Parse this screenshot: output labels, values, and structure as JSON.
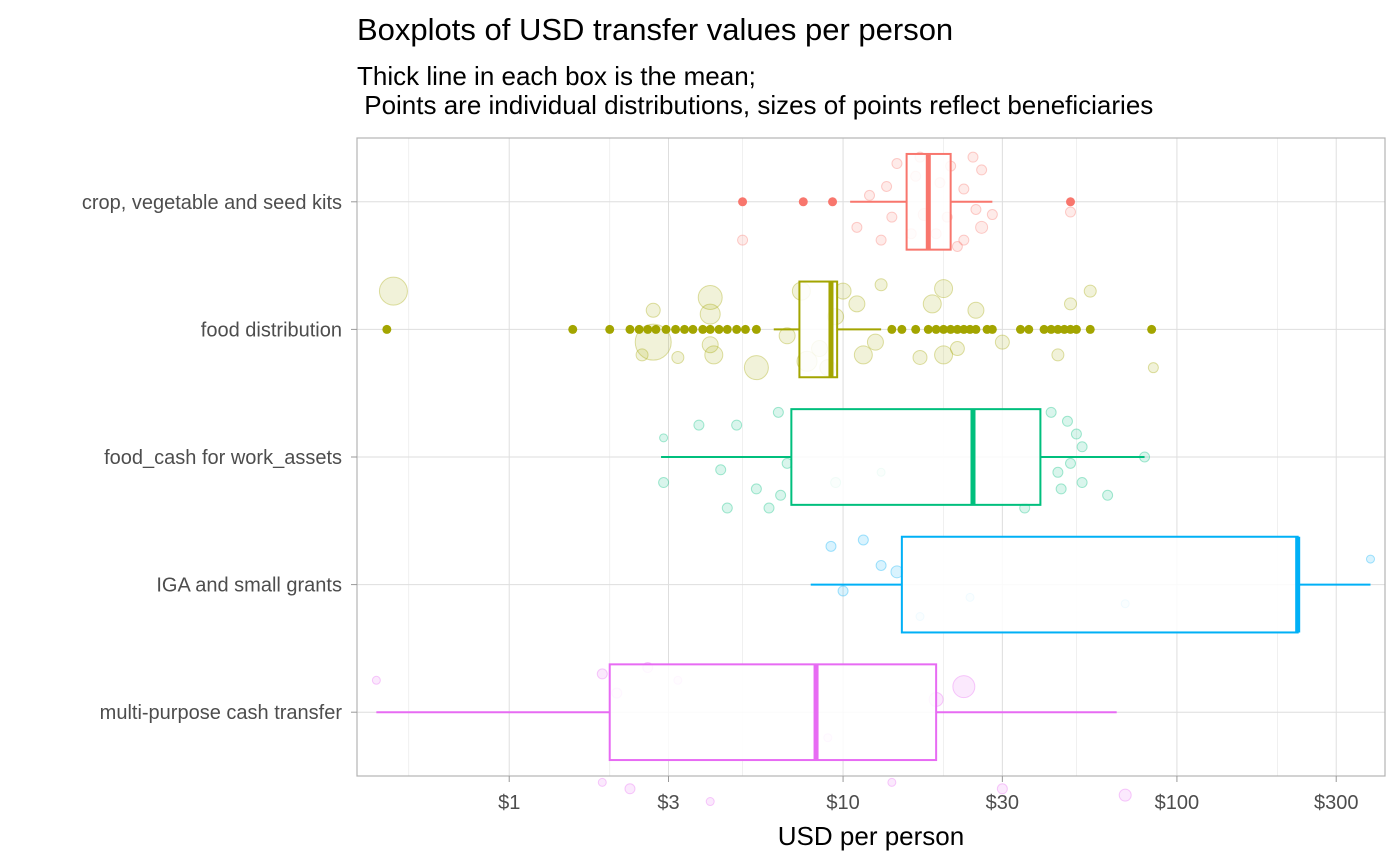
{
  "chart_data": {
    "type": "boxplot",
    "title": "Boxplots of USD transfer values per person",
    "subtitle_lines": [
      "Thick line in each box is the mean;",
      " Points are individual distributions, sizes of points reflect beneficiaries"
    ],
    "xlabel": "USD per person",
    "ylabel": "",
    "x_scale": "log10",
    "xlim": [
      0.35,
      420
    ],
    "x_ticks": [
      {
        "value": 1,
        "label": "$1"
      },
      {
        "value": 3,
        "label": "$3"
      },
      {
        "value": 10,
        "label": "$10"
      },
      {
        "value": 30,
        "label": "$30"
      },
      {
        "value": 100,
        "label": "$100"
      },
      {
        "value": 300,
        "label": "$300"
      }
    ],
    "x_minor_gridlines": [
      0.5,
      2,
      5,
      20,
      50,
      200
    ],
    "grid": true,
    "legend": "none",
    "categories": [
      {
        "name": "multi-purpose cash transfer",
        "color": "#E76BF3",
        "whisker_low": 0.4,
        "q1": 2.0,
        "mean": 8.3,
        "q3": 19.0,
        "whisker_high": 66,
        "outliers": [],
        "points": [
          [
            1.9,
            0.55,
            4
          ],
          [
            2.3,
            0.6,
            5
          ],
          [
            4,
            0.7,
            4
          ],
          [
            14,
            0.55,
            4
          ],
          [
            30,
            0.6,
            5
          ],
          [
            70,
            0.65,
            6
          ],
          [
            1.9,
            -0.3,
            5
          ],
          [
            2.1,
            -0.15,
            5
          ],
          [
            2.6,
            -0.35,
            5
          ],
          [
            3.2,
            -0.25,
            4
          ],
          [
            19,
            -0.1,
            7
          ],
          [
            23,
            -0.2,
            11
          ],
          [
            0.4,
            -0.25,
            4
          ],
          [
            9,
            0.2,
            4
          ]
        ]
      },
      {
        "name": "IGA and small grants",
        "color": "#00B0F6",
        "whisker_low": 8.0,
        "q1": 15.0,
        "mean": 230,
        "q3": 230,
        "whisker_high": 380,
        "outliers": [],
        "points": [
          [
            10,
            0.05,
            5
          ],
          [
            14.5,
            -0.1,
            6
          ],
          [
            13,
            -0.15,
            5
          ],
          [
            9.2,
            -0.3,
            5
          ],
          [
            11.5,
            -0.35,
            5
          ],
          [
            17,
            0.25,
            4
          ],
          [
            24,
            0.1,
            4
          ],
          [
            70,
            0.15,
            4
          ],
          [
            380,
            -0.2,
            4
          ]
        ]
      },
      {
        "name": "food_cash for work_assets",
        "color": "#00BF7D",
        "whisker_low": 2.85,
        "q1": 7.0,
        "mean": 24.5,
        "q3": 39,
        "whisker_high": 80,
        "outliers": [],
        "points": [
          [
            4.5,
            0.4,
            5
          ],
          [
            6,
            0.4,
            5
          ],
          [
            6.5,
            0.3,
            5
          ],
          [
            5.5,
            0.25,
            5
          ],
          [
            2.9,
            0.2,
            5
          ],
          [
            4.3,
            0.1,
            5
          ],
          [
            6.8,
            0.05,
            5
          ],
          [
            9.5,
            0.2,
            5
          ],
          [
            13,
            0.12,
            4
          ],
          [
            45,
            0.25,
            5
          ],
          [
            52,
            0.2,
            5
          ],
          [
            44,
            0.12,
            5
          ],
          [
            62,
            0.3,
            5
          ],
          [
            48,
            0.05,
            5
          ],
          [
            52,
            -0.08,
            5
          ],
          [
            50,
            -0.18,
            5
          ],
          [
            47,
            -0.28,
            5
          ],
          [
            42,
            -0.35,
            5
          ],
          [
            3.7,
            -0.25,
            5
          ],
          [
            4.8,
            -0.25,
            5
          ],
          [
            6.4,
            -0.35,
            5
          ],
          [
            2.9,
            -0.15,
            4
          ],
          [
            80,
            0.0,
            5
          ],
          [
            35,
            0.4,
            5
          ]
        ]
      },
      {
        "name": "food distribution",
        "color": "#A3A500",
        "whisker_low": 6.2,
        "q1": 7.4,
        "mean": 9.2,
        "q3": 9.6,
        "whisker_high": 13,
        "outliers": [
          0.43,
          1.55,
          2.0,
          2.3,
          2.45,
          2.6,
          2.75,
          2.95,
          3.15,
          3.35,
          3.55,
          3.8,
          4.0,
          4.25,
          4.5,
          4.8,
          5.1,
          5.5,
          14,
          15,
          16.5,
          18,
          19,
          20,
          21,
          22,
          23,
          24,
          25,
          27,
          28,
          34,
          36,
          40,
          42,
          44,
          46,
          48,
          50,
          55,
          84
        ],
        "points": [
          [
            2.7,
            0.1,
            18
          ],
          [
            0.45,
            -0.3,
            14
          ],
          [
            2.5,
            0.2,
            6
          ],
          [
            2.7,
            -0.15,
            7
          ],
          [
            3.2,
            0.22,
            6
          ],
          [
            4,
            -0.25,
            12
          ],
          [
            4,
            -0.12,
            10
          ],
          [
            4,
            0.12,
            8
          ],
          [
            4.1,
            0.2,
            9
          ],
          [
            5.5,
            0.3,
            12
          ],
          [
            7.8,
            0.25,
            10
          ],
          [
            8.5,
            0.15,
            8
          ],
          [
            9.5,
            -0.1,
            8
          ],
          [
            11.5,
            0.2,
            9
          ],
          [
            11,
            -0.2,
            8
          ],
          [
            12.5,
            0.1,
            8
          ],
          [
            17,
            0.22,
            7
          ],
          [
            18.5,
            -0.2,
            9
          ],
          [
            20,
            0.2,
            9
          ],
          [
            20,
            -0.32,
            9
          ],
          [
            22,
            0.15,
            7
          ],
          [
            25,
            -0.15,
            8
          ],
          [
            30,
            0.1,
            7
          ],
          [
            48,
            -0.2,
            6
          ],
          [
            44,
            0.2,
            6
          ],
          [
            55,
            -0.3,
            6
          ],
          [
            85,
            0.3,
            5
          ],
          [
            7.5,
            -0.3,
            9
          ],
          [
            9,
            0.3,
            8
          ],
          [
            6.8,
            0.05,
            8
          ],
          [
            10,
            -0.3,
            8
          ],
          [
            13,
            -0.35,
            6
          ]
        ]
      },
      {
        "name": "crop, vegetable and seed kits",
        "color": "#F8766D",
        "whisker_low": 10.5,
        "q1": 15.5,
        "mean": 18.0,
        "q3": 21.0,
        "whisker_high": 28,
        "outliers": [
          5.0,
          7.6,
          9.3,
          48
        ],
        "points": [
          [
            5,
            0.3,
            5
          ],
          [
            13,
            0.3,
            5
          ],
          [
            16,
            0.25,
            5
          ],
          [
            19,
            0.25,
            5
          ],
          [
            23,
            0.3,
            5
          ],
          [
            26,
            0.2,
            6
          ],
          [
            14,
            0.12,
            5
          ],
          [
            17.5,
            0.1,
            6
          ],
          [
            20.5,
            0.12,
            5
          ],
          [
            25,
            0.06,
            5
          ],
          [
            28,
            0.1,
            5
          ],
          [
            13.5,
            -0.12,
            5
          ],
          [
            16.5,
            -0.2,
            5
          ],
          [
            19.5,
            -0.15,
            5
          ],
          [
            23,
            -0.1,
            5
          ],
          [
            26,
            -0.25,
            5
          ],
          [
            14.5,
            -0.3,
            5
          ],
          [
            17,
            -0.35,
            5
          ],
          [
            21,
            -0.28,
            5
          ],
          [
            48,
            0.08,
            5
          ],
          [
            11,
            0.2,
            5
          ],
          [
            12,
            -0.05,
            5
          ],
          [
            22,
            0.35,
            5
          ],
          [
            24.5,
            -0.35,
            5
          ]
        ]
      }
    ]
  }
}
